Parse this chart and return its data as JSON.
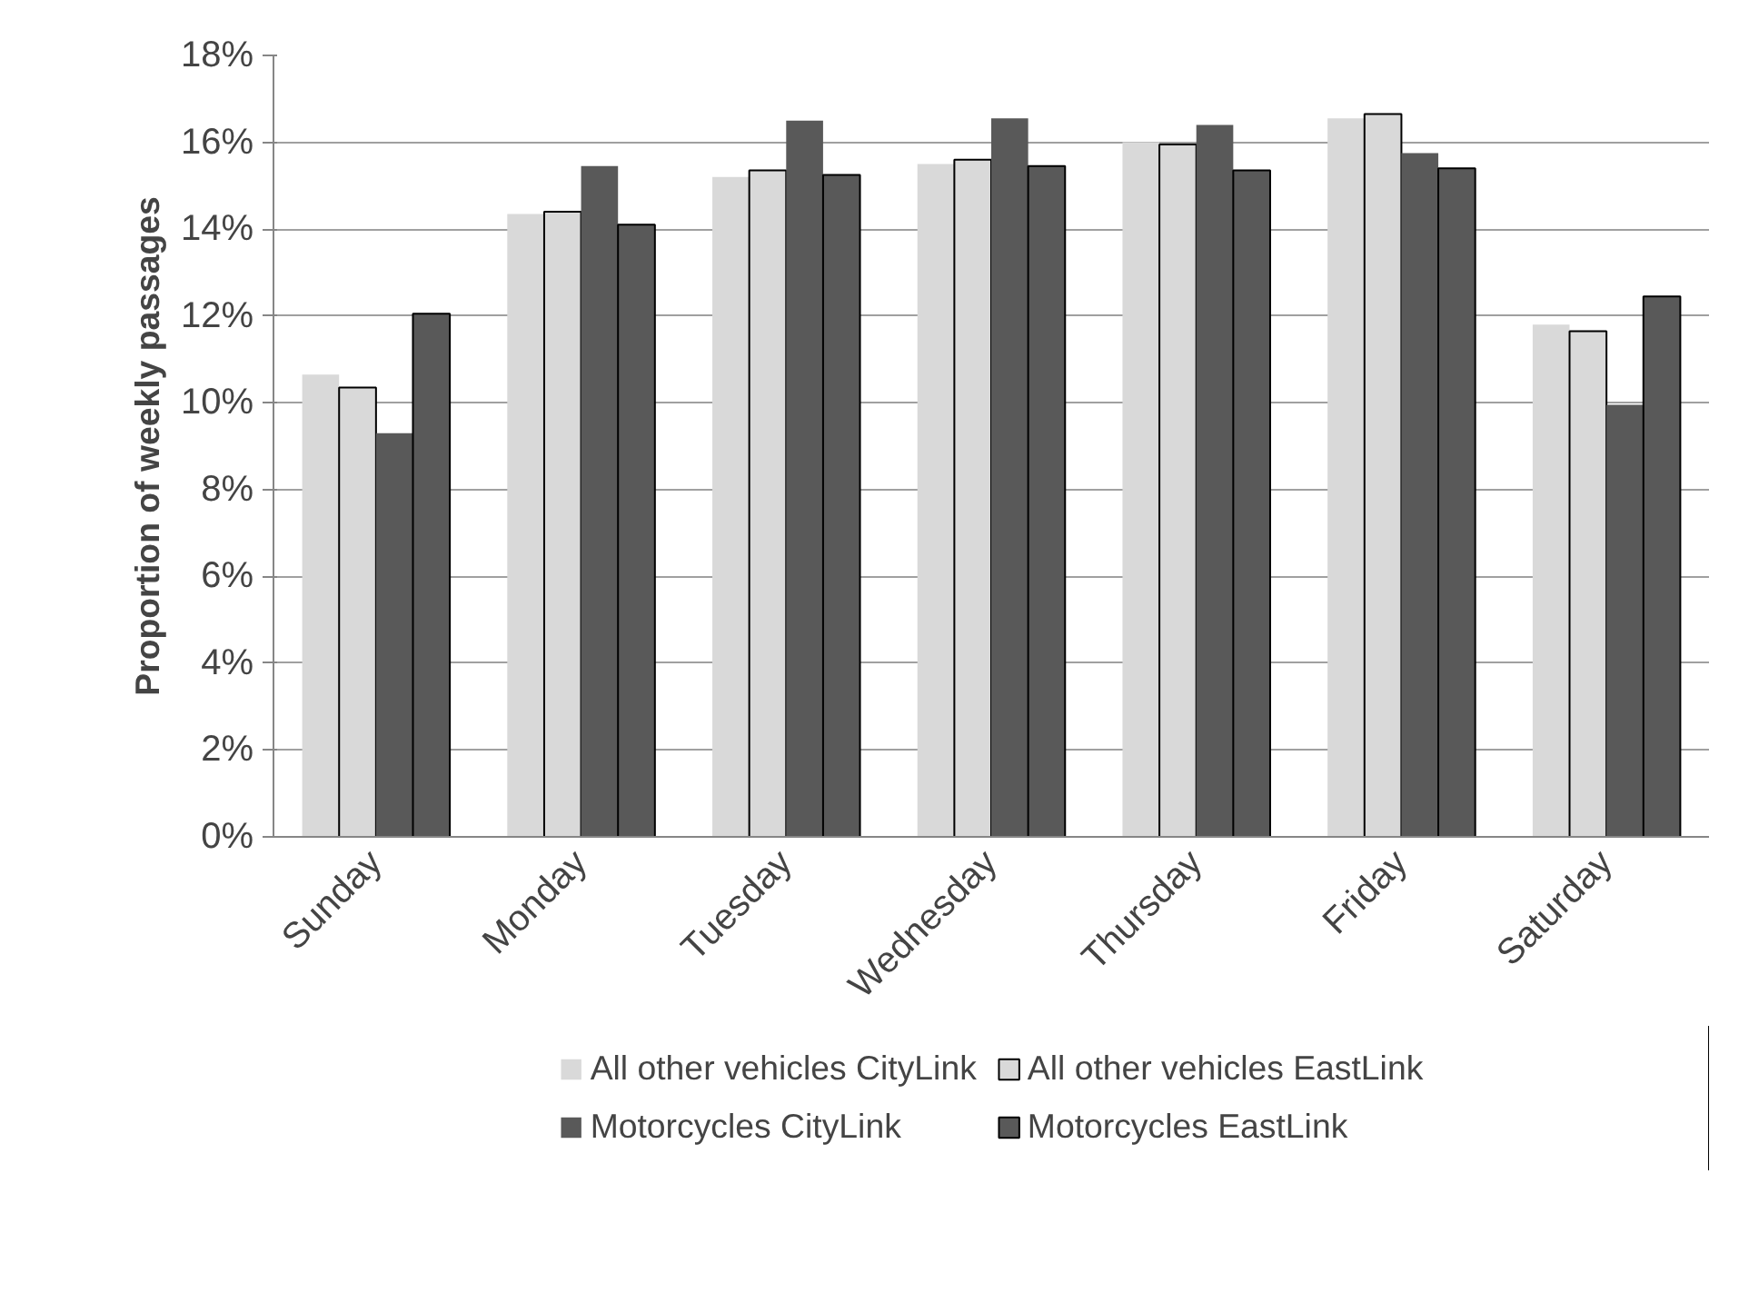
{
  "chart_data": {
    "type": "bar",
    "ylabel": "Proportion of weekly passages",
    "categories": [
      "Sunday",
      "Monday",
      "Tuesday",
      "Wednesday",
      "Thursday",
      "Friday",
      "Saturday"
    ],
    "series": [
      {
        "name": "All other vehicles CityLink",
        "color": "#d9d9d9",
        "values": [
          10.65,
          14.35,
          15.2,
          15.5,
          16.0,
          16.55,
          11.8
        ]
      },
      {
        "name": "All other vehicles EastLink",
        "color": "#d9d9d9",
        "values": [
          10.35,
          14.4,
          15.35,
          15.6,
          15.95,
          16.65,
          11.65
        ]
      },
      {
        "name": "Motorcycles CityLink",
        "color": "#595959",
        "values": [
          9.3,
          15.45,
          16.5,
          16.55,
          16.4,
          15.75,
          9.95
        ]
      },
      {
        "name": "Motorcycles EastLink",
        "color": "#595959",
        "values": [
          12.05,
          14.1,
          15.25,
          15.45,
          15.35,
          15.4,
          12.45
        ]
      }
    ],
    "ylim": [
      0,
      18
    ],
    "yticks": [
      {
        "value": 0,
        "label": "0%"
      },
      {
        "value": 2,
        "label": "2%"
      },
      {
        "value": 4,
        "label": "4%"
      },
      {
        "value": 6,
        "label": "6%"
      },
      {
        "value": 8,
        "label": "8%"
      },
      {
        "value": 10,
        "label": "10%"
      },
      {
        "value": 12,
        "label": "12%"
      },
      {
        "value": 14,
        "label": "14%"
      },
      {
        "value": 16,
        "label": "16%"
      },
      {
        "value": 18,
        "label": "18%"
      }
    ],
    "grid": "y",
    "legend": "bottom"
  }
}
